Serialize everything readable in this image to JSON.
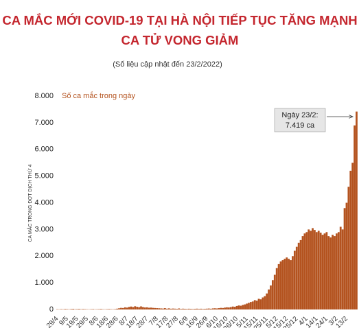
{
  "chart_data": {
    "type": "bar",
    "title_lines": [
      "CA MẮC MỚI COVID-19 TẠI HÀ NỘI TIẾP TỤC TĂNG MẠNH",
      "CA TỬ VONG GIẢM"
    ],
    "subtitle": "(Số liệu cập nhật đến 23/2/2022)",
    "y_label": "CA MẮC TRONG ĐỢT DỊCH THỨ 4",
    "series_label": "Số ca mắc trong ngày",
    "annotation_lines": [
      "Ngày 23/2:",
      "7.419 ca"
    ],
    "color": "#b4531f",
    "ylim": [
      0,
      8000
    ],
    "yticks": [
      {
        "value": 0,
        "label": "0"
      },
      {
        "value": 1000,
        "label": "1.000"
      },
      {
        "value": 2000,
        "label": "2.000"
      },
      {
        "value": 3000,
        "label": "3.000"
      },
      {
        "value": 4000,
        "label": "4.000"
      },
      {
        "value": 5000,
        "label": "5.000"
      },
      {
        "value": 6000,
        "label": "6.000"
      },
      {
        "value": 7000,
        "label": "7.000"
      },
      {
        "value": 8000,
        "label": "8.000"
      }
    ],
    "categories": [
      "29/4",
      null,
      null,
      null,
      null,
      "9/5",
      null,
      null,
      null,
      null,
      "19/5",
      null,
      null,
      null,
      null,
      "29/5",
      null,
      null,
      null,
      null,
      "8/6",
      null,
      null,
      null,
      null,
      "18/6",
      null,
      null,
      null,
      null,
      "28/6",
      null,
      null,
      null,
      null,
      "8/7",
      null,
      null,
      null,
      null,
      "18/7",
      null,
      null,
      null,
      null,
      "28/7",
      null,
      null,
      null,
      null,
      "7/8",
      null,
      null,
      null,
      null,
      "17/8",
      null,
      null,
      null,
      null,
      "27/8",
      null,
      null,
      null,
      null,
      "6/9",
      null,
      null,
      null,
      null,
      "16/9",
      null,
      null,
      null,
      null,
      "26/9",
      null,
      null,
      null,
      null,
      "6/10",
      null,
      null,
      null,
      null,
      "16/10",
      null,
      null,
      null,
      null,
      "26/10",
      null,
      null,
      null,
      null,
      "5/11",
      null,
      null,
      null,
      null,
      "15/11",
      null,
      null,
      null,
      null,
      "25/11",
      null,
      null,
      null,
      null,
      "5/12",
      null,
      null,
      null,
      null,
      "15/12",
      null,
      null,
      null,
      null,
      "25/12",
      null,
      null,
      null,
      null,
      "4/1",
      null,
      null,
      null,
      null,
      "14/1",
      null,
      null,
      null,
      null,
      "24/1",
      null,
      null,
      null,
      null,
      "3/2",
      null,
      null,
      null,
      null,
      "13/2",
      null,
      null,
      null,
      null,
      null
    ],
    "values": [
      12,
      8,
      15,
      10,
      20,
      14,
      9,
      18,
      25,
      12,
      16,
      22,
      11,
      19,
      14,
      10,
      8,
      13,
      17,
      9,
      12,
      15,
      20,
      11,
      9,
      14,
      18,
      12,
      10,
      16,
      30,
      45,
      60,
      55,
      80,
      70,
      95,
      110,
      90,
      120,
      100,
      85,
      115,
      90,
      75,
      80,
      65,
      70,
      60,
      55,
      50,
      45,
      40,
      35,
      50,
      30,
      42,
      28,
      35,
      30,
      25,
      38,
      22,
      30,
      26,
      20,
      28,
      24,
      18,
      25,
      30,
      22,
      28,
      20,
      26,
      30,
      35,
      28,
      40,
      45,
      38,
      50,
      60,
      55,
      70,
      80,
      75,
      90,
      110,
      100,
      130,
      150,
      140,
      170,
      190,
      220,
      250,
      280,
      300,
      350,
      330,
      400,
      380,
      450,
      500,
      600,
      750,
      900,
      1100,
      1300,
      1550,
      1700,
      1800,
      1850,
      1900,
      1950,
      1900,
      1850,
      2000,
      2200,
      2350,
      2500,
      2600,
      2750,
      2850,
      2900,
      3000,
      2950,
      3050,
      2980,
      2900,
      2950,
      2880,
      2800,
      2850,
      2900,
      2750,
      2700,
      2800,
      2750,
      2850,
      2900,
      3100,
      3000,
      3800,
      4000,
      4600,
      5200,
      5500,
      6900,
      7419
    ]
  }
}
